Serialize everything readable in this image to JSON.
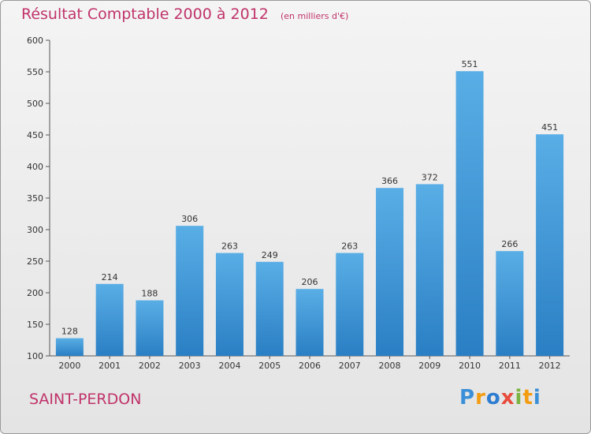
{
  "chart_data": {
    "type": "bar",
    "title": "Résultat Comptable 2000 à 2012",
    "subtitle": "(en milliers d'€)",
    "categories": [
      "2000",
      "2001",
      "2002",
      "2003",
      "2004",
      "2005",
      "2006",
      "2007",
      "2008",
      "2009",
      "2010",
      "2011",
      "2012"
    ],
    "values": [
      128,
      214,
      188,
      306,
      263,
      249,
      206,
      263,
      366,
      372,
      551,
      266,
      451
    ],
    "ylim": [
      100,
      600
    ],
    "yticks": [
      100,
      150,
      200,
      250,
      300,
      350,
      400,
      450,
      500,
      550,
      600
    ],
    "xlabel": "",
    "ylabel": "",
    "grid": false,
    "bar_color": "#4a9fdc"
  },
  "footer": {
    "city": "SAINT-PERDON",
    "logo_letters": [
      "P",
      "r",
      "o",
      "x",
      "i",
      "t",
      "i"
    ],
    "logo_colors": [
      "#3a8fd8",
      "#f39c12",
      "#2e7dd1",
      "#e74c3c",
      "#7cb342",
      "#f39c12",
      "#3a8fd8"
    ]
  }
}
